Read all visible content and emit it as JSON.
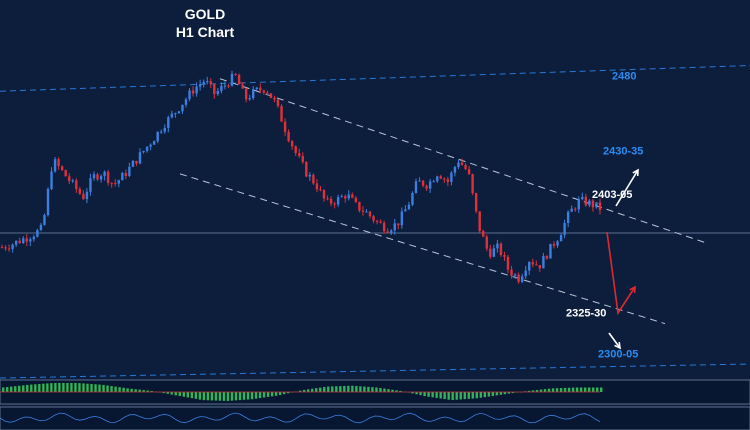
{
  "header": {
    "title": "GOLD",
    "subtitle": "H1 Chart"
  },
  "colors": {
    "background": "#0c1e3c",
    "bull_candle": "#3b7fe0",
    "bear_candle": "#e0303a",
    "level_label": "#2a8cf2",
    "target_label": "#ffffff",
    "channel_line": "#b8c4d8",
    "guide_line": "#2a78d8",
    "indicator_bar": "#2fb457",
    "bullish_arrow": "#ffffff",
    "bearish_arrow": "#e02830"
  },
  "chart_data": {
    "type": "candlestick",
    "instrument": "GOLD",
    "timeframe": "H1",
    "price_range": [
      2290,
      2490
    ],
    "close_path": [
      2370,
      2372,
      2375,
      2378,
      2382,
      2426,
      2418,
      2410,
      2402,
      2415,
      2418,
      2410,
      2416,
      2424,
      2432,
      2440,
      2449,
      2456,
      2464,
      2472,
      2477,
      2468,
      2474,
      2480,
      2465,
      2470,
      2472,
      2462,
      2445,
      2430,
      2418,
      2410,
      2398,
      2400,
      2404,
      2396,
      2392,
      2386,
      2382,
      2385,
      2396,
      2412,
      2410,
      2418,
      2412,
      2426,
      2418,
      2384,
      2366,
      2370,
      2355,
      2350,
      2362,
      2358,
      2368,
      2378,
      2392,
      2400,
      2398,
      2395
    ],
    "levels": [
      {
        "label": "2480",
        "price": 2480
      },
      {
        "label": "2430-35",
        "price": 2432
      },
      {
        "label": "2403-05",
        "price": 2404
      },
      {
        "label": "2325-30",
        "price": 2328
      },
      {
        "label": "2300-05",
        "price": 2302
      }
    ],
    "channel": {
      "upper": {
        "from_price": 2478,
        "to_price": 2373
      },
      "lower": {
        "from_price": 2417,
        "to_price": 2321
      }
    },
    "scenarios": [
      {
        "direction": "up",
        "from": "2403-05",
        "to": "2430-35",
        "color": "#ffffff"
      },
      {
        "direction": "down-then-up",
        "from": "2403-05",
        "via": "2325-30",
        "color": "#e02830"
      },
      {
        "direction": "down",
        "from": "2325-30",
        "to": "2300-05",
        "color": "#ffffff"
      }
    ],
    "indicator": {
      "type": "histogram",
      "values": [
        0.5,
        0.8,
        1.0,
        1.0,
        0.8,
        0.4,
        0.1,
        -0.4,
        -0.9,
        -1.0,
        -0.8,
        -0.4,
        0.2,
        0.6,
        0.7,
        0.5,
        0.1,
        -0.5,
        -0.9,
        -0.7,
        -0.3,
        0.1,
        0.4,
        0.5,
        0.5
      ]
    }
  }
}
